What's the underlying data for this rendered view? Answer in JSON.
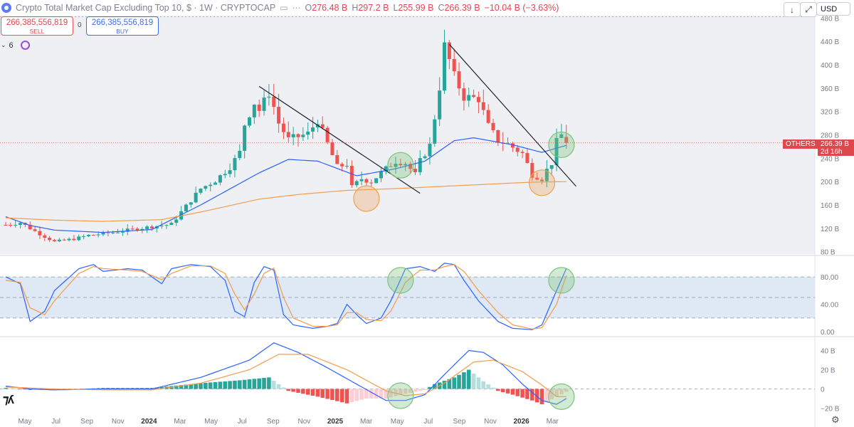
{
  "header": {
    "title": "Crypto Total Market Cap Excluding Top 10, $ · 1W · CRYPTOCAP",
    "open_label": "O",
    "open": "276.48 B",
    "high_label": "H",
    "high": "297.2 B",
    "low_label": "L",
    "low": "255.99 B",
    "close_label": "C",
    "close": "266.39 B",
    "change": "−10.04 B (−3.63%)"
  },
  "toolbar": {
    "download_icon": "↓",
    "fullscreen_icon": "⤢",
    "currency": "USD"
  },
  "orders": {
    "sell_price": "266,385,556,819",
    "sell_label": "SELL",
    "spread": "0",
    "buy_price": "266,385,556,819",
    "buy_label": "BUY"
  },
  "indicator_count": "6",
  "price_tag": {
    "symbol": "OTHERS",
    "price": "266.39 B",
    "countdown": "2d 16h"
  },
  "colors": {
    "up": "#26a69a",
    "down": "#ef5350",
    "ma_short": "#2962ff",
    "ma_long": "#f39c4a",
    "stoch_k": "#2962ff",
    "stoch_d": "#f39c4a",
    "macd": "#2962ff",
    "signal": "#f39c4a",
    "trendline": "#1e222d",
    "circle_green": "#7cc27c",
    "circle_orange": "#f0a050"
  },
  "chart_data": [
    {
      "type": "candlestick",
      "title": "Crypto Total Market Cap Excluding Top 10, $ · 1W · CRYPTOCAP",
      "x_ticks": [
        "May",
        "Jul",
        "Sep",
        "Nov",
        "2024",
        "Mar",
        "May",
        "Jul",
        "Sep",
        "Nov",
        "2025",
        "Mar",
        "May",
        "Jul",
        "Sep",
        "Nov",
        "2026",
        "Mar"
      ],
      "y_ticks": [
        "80 B",
        "120 B",
        "160 B",
        "200 B",
        "240 B",
        "280 B",
        "320 B",
        "360 B",
        "400 B",
        "440 B",
        "480 B"
      ],
      "ylim": [
        76,
        484
      ],
      "y_unit": "B USD",
      "candle_anchors": [
        [
          0,
          126
        ],
        [
          3,
          130
        ],
        [
          6,
          115
        ],
        [
          10,
          97
        ],
        [
          14,
          102
        ],
        [
          17,
          108
        ],
        [
          22,
          113
        ],
        [
          26,
          118
        ],
        [
          30,
          123
        ],
        [
          34,
          127
        ],
        [
          36,
          148
        ],
        [
          40,
          188
        ],
        [
          43,
          202
        ],
        [
          46,
          225
        ],
        [
          48,
          250
        ],
        [
          49,
          298
        ],
        [
          51,
          335
        ],
        [
          52,
          322
        ],
        [
          54,
          352
        ],
        [
          55,
          328
        ],
        [
          56,
          300
        ],
        [
          58,
          272
        ],
        [
          62,
          282
        ],
        [
          64,
          305
        ],
        [
          66,
          265
        ],
        [
          68,
          225
        ],
        [
          70,
          230
        ],
        [
          71,
          190
        ],
        [
          73,
          205
        ],
        [
          75,
          200
        ],
        [
          77,
          215
        ],
        [
          80,
          235
        ],
        [
          82,
          232
        ],
        [
          84,
          212
        ],
        [
          85,
          235
        ],
        [
          87,
          262
        ],
        [
          88,
          310
        ],
        [
          89,
          362
        ],
        [
          90,
          432
        ],
        [
          91,
          408
        ],
        [
          92,
          380
        ],
        [
          94,
          345
        ],
        [
          97,
          342
        ],
        [
          99,
          295
        ],
        [
          101,
          270
        ],
        [
          103,
          264
        ],
        [
          106,
          248
        ],
        [
          108,
          212
        ],
        [
          110,
          205
        ],
        [
          111,
          220
        ],
        [
          112,
          232
        ],
        [
          113,
          268
        ],
        [
          114,
          280
        ],
        [
          115,
          266.39
        ]
      ],
      "series": [
        {
          "name": "",
          "type": "moving-average",
          "anchors": [
            [
              0,
              140
            ],
            [
              5,
              125
            ],
            [
              10,
              117
            ],
            [
              20,
              113
            ],
            [
              30,
              118
            ],
            [
              40,
              160
            ],
            [
              52,
              215
            ],
            [
              58,
              238
            ],
            [
              64,
              235
            ],
            [
              72,
              210
            ],
            [
              80,
              222
            ],
            [
              86,
              235
            ],
            [
              92,
              270
            ],
            [
              96,
              275
            ],
            [
              104,
              263
            ],
            [
              110,
              250
            ],
            [
              115,
              262
            ]
          ]
        },
        {
          "name": "",
          "type": "moving-average",
          "anchors": [
            [
              0,
              138
            ],
            [
              10,
              134
            ],
            [
              20,
              132
            ],
            [
              32,
              135
            ],
            [
              40,
              148
            ],
            [
              52,
              170
            ],
            [
              60,
              178
            ],
            [
              70,
              185
            ],
            [
              80,
              188
            ],
            [
              90,
              192
            ],
            [
              100,
              196
            ],
            [
              108,
              199
            ],
            [
              115,
              200
            ]
          ]
        }
      ],
      "trendlines": [
        {
          "from": [
            52,
            363
          ],
          "to": [
            85,
            180
          ]
        },
        {
          "from": [
            91,
            435
          ],
          "to": [
            117,
            192
          ]
        }
      ],
      "highlight_circles": [
        {
          "at": [
            74,
            171
          ],
          "color": "orange"
        },
        {
          "at": [
            81,
            228
          ],
          "color": "green"
        },
        {
          "at": [
            110,
            198
          ],
          "color": "orange"
        },
        {
          "at": [
            114,
            263
          ],
          "color": "green"
        }
      ],
      "last_price": 266.39
    },
    {
      "type": "line",
      "title": "",
      "y_ticks": [
        "0.00",
        "40.00",
        "80.00"
      ],
      "ylim": [
        -5,
        105
      ],
      "bands": [
        20,
        50,
        80
      ],
      "series": [
        {
          "name": "",
          "anchors": [
            [
              0,
              80
            ],
            [
              3,
              70
            ],
            [
              5,
              15
            ],
            [
              8,
              30
            ],
            [
              10,
              60
            ],
            [
              15,
              92
            ],
            [
              18,
              98
            ],
            [
              20,
              88
            ],
            [
              25,
              92
            ],
            [
              28,
              90
            ],
            [
              30,
              80
            ],
            [
              32,
              70
            ],
            [
              34,
              92
            ],
            [
              38,
              98
            ],
            [
              42,
              95
            ],
            [
              45,
              75
            ],
            [
              47,
              30
            ],
            [
              49,
              22
            ],
            [
              51,
              72
            ],
            [
              53,
              95
            ],
            [
              55,
              90
            ],
            [
              57,
              25
            ],
            [
              59,
              10
            ],
            [
              63,
              5
            ],
            [
              66,
              8
            ],
            [
              68,
              12
            ],
            [
              70,
              40
            ],
            [
              72,
              25
            ],
            [
              74,
              12
            ],
            [
              77,
              20
            ],
            [
              79,
              45
            ],
            [
              82,
              92
            ],
            [
              85,
              95
            ],
            [
              88,
              88
            ],
            [
              90,
              100
            ],
            [
              92,
              98
            ],
            [
              94,
              75
            ],
            [
              97,
              45
            ],
            [
              101,
              15
            ],
            [
              104,
              5
            ],
            [
              108,
              3
            ],
            [
              110,
              10
            ],
            [
              113,
              60
            ],
            [
              115,
              92
            ]
          ]
        },
        {
          "name": "",
          "anchors": [
            [
              0,
              75
            ],
            [
              3,
              72
            ],
            [
              5,
              35
            ],
            [
              8,
              25
            ],
            [
              10,
              45
            ],
            [
              15,
              85
            ],
            [
              18,
              95
            ],
            [
              20,
              92
            ],
            [
              25,
              90
            ],
            [
              28,
              88
            ],
            [
              30,
              82
            ],
            [
              32,
              76
            ],
            [
              34,
              85
            ],
            [
              38,
              96
            ],
            [
              42,
              96
            ],
            [
              45,
              85
            ],
            [
              47,
              55
            ],
            [
              49,
              32
            ],
            [
              51,
              55
            ],
            [
              53,
              85
            ],
            [
              55,
              93
            ],
            [
              57,
              50
            ],
            [
              59,
              20
            ],
            [
              63,
              8
            ],
            [
              66,
              8
            ],
            [
              68,
              10
            ],
            [
              70,
              28
            ],
            [
              72,
              28
            ],
            [
              74,
              18
            ],
            [
              77,
              16
            ],
            [
              79,
              30
            ],
            [
              82,
              72
            ],
            [
              85,
              90
            ],
            [
              88,
              90
            ],
            [
              90,
              95
            ],
            [
              92,
              98
            ],
            [
              94,
              88
            ],
            [
              97,
              60
            ],
            [
              101,
              28
            ],
            [
              104,
              10
            ],
            [
              108,
              4
            ],
            [
              110,
              6
            ],
            [
              113,
              40
            ],
            [
              115,
              82
            ]
          ]
        }
      ],
      "highlight_circles": [
        {
          "at": [
            81,
            75
          ],
          "color": "green"
        },
        {
          "at": [
            114,
            75
          ],
          "color": "green"
        }
      ]
    },
    {
      "type": "macd",
      "title": "",
      "x_ticks": [
        "May",
        "Jul",
        "Sep",
        "Nov",
        "2024",
        "Mar",
        "May",
        "Jul",
        "Sep",
        "Nov",
        "2025",
        "Mar",
        "May",
        "Jul",
        "Sep",
        "Nov",
        "2026",
        "Mar"
      ],
      "y_ticks": [
        "−20 B",
        "0",
        "20 B",
        "40 B"
      ],
      "ylim": [
        -27,
        50
      ],
      "series": [
        {
          "name": "",
          "type": "line",
          "anchors": [
            [
              0,
              3
            ],
            [
              5,
              0
            ],
            [
              10,
              -1
            ],
            [
              20,
              0
            ],
            [
              30,
              0
            ],
            [
              40,
              12
            ],
            [
              50,
              30
            ],
            [
              55,
              48
            ],
            [
              60,
              38
            ],
            [
              66,
              22
            ],
            [
              72,
              5
            ],
            [
              78,
              -12
            ],
            [
              82,
              -12
            ],
            [
              86,
              -6
            ],
            [
              90,
              15
            ],
            [
              95,
              40
            ],
            [
              98,
              38
            ],
            [
              102,
              25
            ],
            [
              106,
              5
            ],
            [
              110,
              -12
            ],
            [
              113,
              -16
            ],
            [
              115,
              -10
            ]
          ]
        },
        {
          "name": "",
          "type": "line",
          "anchors": [
            [
              0,
              2
            ],
            [
              10,
              0
            ],
            [
              20,
              -1
            ],
            [
              30,
              -1
            ],
            [
              40,
              6
            ],
            [
              50,
              20
            ],
            [
              56,
              36
            ],
            [
              62,
              36
            ],
            [
              70,
              20
            ],
            [
              78,
              -2
            ],
            [
              82,
              -7
            ],
            [
              86,
              -5
            ],
            [
              90,
              6
            ],
            [
              96,
              28
            ],
            [
              100,
              30
            ],
            [
              106,
              18
            ],
            [
              110,
              4
            ],
            [
              113,
              -8
            ],
            [
              115,
              -8
            ]
          ]
        },
        {
          "name": "",
          "type": "histogram",
          "anchors": [
            [
              0,
              1
            ],
            [
              5,
              -1
            ],
            [
              10,
              -1
            ],
            [
              20,
              1
            ],
            [
              30,
              1
            ],
            [
              40,
              6
            ],
            [
              48,
              9
            ],
            [
              54,
              12
            ],
            [
              58,
              -2
            ],
            [
              64,
              -8
            ],
            [
              70,
              -15
            ],
            [
              74,
              -10
            ],
            [
              78,
              -10
            ],
            [
              82,
              -5
            ],
            [
              86,
              -1
            ],
            [
              88,
              5
            ],
            [
              92,
              12
            ],
            [
              95,
              20
            ],
            [
              98,
              8
            ],
            [
              101,
              -2
            ],
            [
              104,
              -6
            ],
            [
              108,
              -12
            ],
            [
              110,
              -16
            ],
            [
              113,
              -8
            ],
            [
              115,
              -3
            ]
          ]
        }
      ],
      "highlight_circles": [
        {
          "at": [
            81,
            -7
          ],
          "color": "green"
        },
        {
          "at": [
            114,
            -8
          ],
          "color": "green"
        }
      ]
    }
  ]
}
